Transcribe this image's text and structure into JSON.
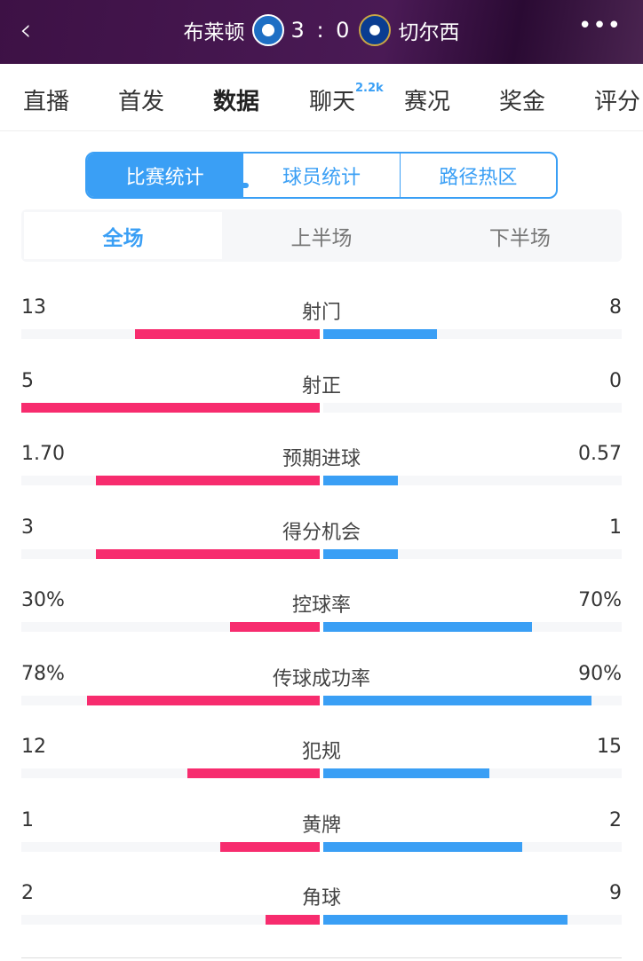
{
  "header": {
    "back_icon": "chevron-left-icon",
    "home_team": "布莱顿",
    "score": "3 : 0",
    "away_team": "切尔西",
    "more_icon": "more-dots-icon"
  },
  "tabs": [
    {
      "label": "直播"
    },
    {
      "label": "首发"
    },
    {
      "label": "数据",
      "active": true
    },
    {
      "label": "聊天",
      "badge": "2.2k"
    },
    {
      "label": "赛况"
    },
    {
      "label": "奖金"
    },
    {
      "label": "评分"
    }
  ],
  "segments": [
    "比赛统计",
    "球员统计",
    "路径热区"
  ],
  "periods": [
    "全场",
    "上半场",
    "下半场"
  ],
  "colors": {
    "home": "#f72c6e",
    "away": "#3a9ff5",
    "accent": "#3a9ff5"
  },
  "stats": [
    {
      "label": "射门",
      "home": "13",
      "away": "8",
      "home_fill": 0.619,
      "away_fill": 0.381
    },
    {
      "label": "射正",
      "home": "5",
      "away": "0",
      "home_fill": 1.0,
      "away_fill": 0
    },
    {
      "label": "预期进球",
      "home": "1.70",
      "away": "0.57",
      "home_fill": 0.749,
      "away_fill": 0.251
    },
    {
      "label": "得分机会",
      "home": "3",
      "away": "1",
      "home_fill": 0.75,
      "away_fill": 0.25
    },
    {
      "label": "控球率",
      "home": "30%",
      "away": "70%",
      "home_fill": 0.3,
      "away_fill": 0.7
    },
    {
      "label": "传球成功率",
      "home": "78%",
      "away": "90%",
      "home_fill": 0.78,
      "away_fill": 0.9
    },
    {
      "label": "犯规",
      "home": "12",
      "away": "15",
      "home_fill": 0.444,
      "away_fill": 0.556
    },
    {
      "label": "黄牌",
      "home": "1",
      "away": "2",
      "home_fill": 0.333,
      "away_fill": 0.667
    },
    {
      "label": "角球",
      "home": "2",
      "away": "9",
      "home_fill": 0.182,
      "away_fill": 0.818
    }
  ]
}
